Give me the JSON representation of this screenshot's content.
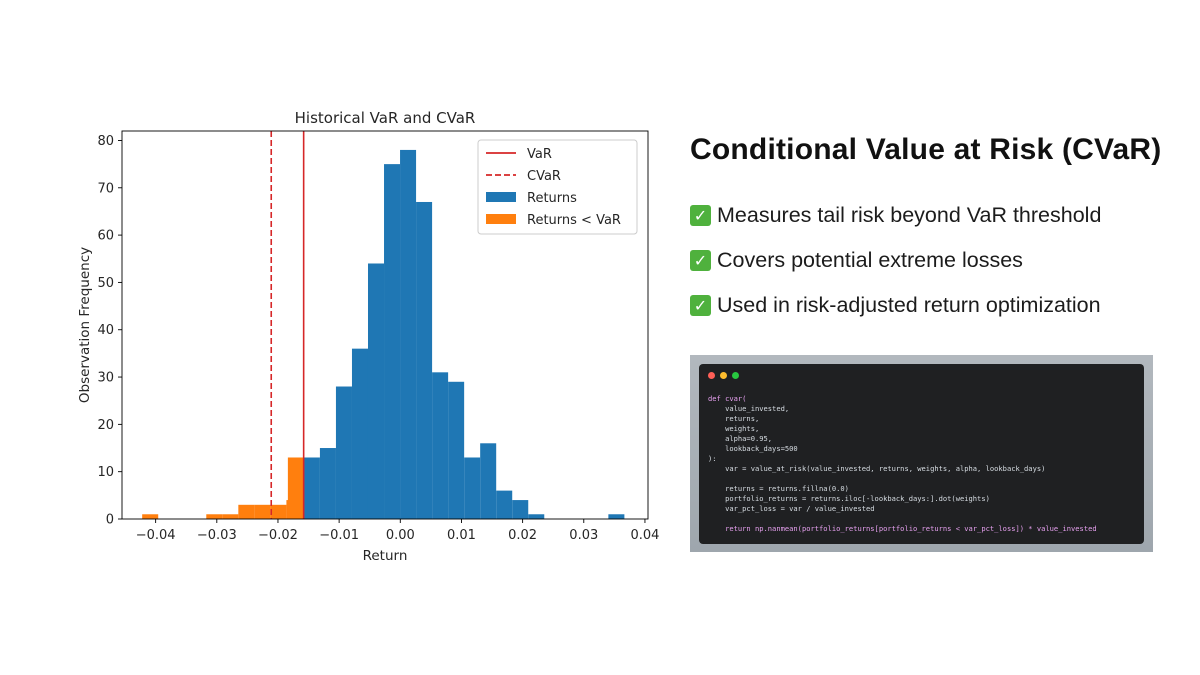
{
  "chart_data": {
    "type": "bar",
    "title": "Historical VaR and CVaR",
    "xlabel": "Return",
    "ylabel": "Observation Frequency",
    "xlim": [
      -0.0455,
      0.0405
    ],
    "ylim": [
      0,
      82
    ],
    "xticks": [
      -0.04,
      -0.03,
      -0.02,
      -0.01,
      0.0,
      0.01,
      0.02,
      0.03,
      0.04
    ],
    "xtick_labels": [
      "−0.04",
      "−0.03",
      "−0.02",
      "−0.01",
      "0.00",
      "0.01",
      "0.02",
      "0.03",
      "0.04"
    ],
    "yticks": [
      0,
      10,
      20,
      30,
      40,
      50,
      60,
      70,
      80
    ],
    "bin_width": 0.00262,
    "series": [
      {
        "name": "Returns",
        "color": "#1f77b4",
        "bin_start": [
          -0.01576,
          -0.01314,
          -0.01052,
          -0.0079,
          -0.00528,
          -0.00266,
          -4e-05,
          0.00258,
          0.0052,
          0.00782,
          0.01044,
          0.01306,
          0.01568,
          0.0183,
          0.02092,
          0.02354,
          0.02616,
          0.02878,
          0.0314,
          0.03402
        ],
        "values": [
          13,
          15,
          28,
          36,
          54,
          75,
          78,
          67,
          31,
          29,
          13,
          16,
          6,
          4,
          1,
          0,
          0,
          0,
          0,
          1
        ]
      },
      {
        "name": "Returns < VaR",
        "color": "#ff7f0e",
        "bin_start": [
          -0.0422,
          -0.03958,
          -0.03696,
          -0.03434,
          -0.03172,
          -0.0291,
          -0.02648,
          -0.02386,
          -0.02124,
          -0.01862,
          -0.01838
        ],
        "values": [
          1,
          0,
          0,
          0,
          1,
          1,
          3,
          3,
          3,
          4,
          13
        ]
      }
    ],
    "lines": [
      {
        "name": "VaR",
        "x": -0.0158,
        "color": "#d62728",
        "style": "solid"
      },
      {
        "name": "CVaR",
        "x": -0.0211,
        "color": "#d62728",
        "style": "dashed"
      }
    ],
    "legend": "top-right",
    "grid": false
  },
  "info": {
    "heading": "Conditional Value at Risk (CVaR)",
    "check_glyph": "✓",
    "bullets": [
      "Measures tail risk beyond VaR threshold",
      "Covers potential extreme losses",
      "Used in risk-adjusted return optimization"
    ]
  },
  "code_snippet": {
    "dot_colors": [
      "#ff5f57",
      "#febc2e",
      "#28c840"
    ],
    "lines": [
      "def cvar(",
      "    value_invested,",
      "    returns,",
      "    weights,",
      "    alpha=0.95,",
      "    lookback_days=500",
      "):",
      "    var = value_at_risk(value_invested, returns, weights, alpha, lookback_days)",
      "",
      "    returns = returns.fillna(0.0)",
      "    portfolio_returns = returns.iloc[-lookback_days:].dot(weights)",
      "    var_pct_loss = var / value_invested",
      "",
      "    return np.nanmean(portfolio_returns[portfolio_returns < var_pct_loss]) * value_invested"
    ]
  }
}
